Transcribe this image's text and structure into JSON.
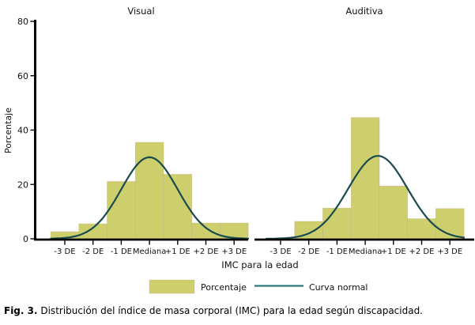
{
  "figure": {
    "caption": {
      "prefix": "Fig. 3.",
      "text": " Distribución del índice de masa corporal (IMC) para la edad según discapacidad."
    }
  },
  "chart_data": {
    "type": "bar",
    "subtype": "histogram-with-normal-curve",
    "title": "",
    "xlabel": "IMC para la edad",
    "ylabel": "Porcentaje",
    "ylim": [
      0,
      80
    ],
    "yticks": [
      0,
      20,
      40,
      60,
      80
    ],
    "grid": false,
    "legend_position": "bottom",
    "categories": [
      "-3 DE",
      "-2 DE",
      "-1 DE",
      "Mediana",
      "+1 DE",
      "+2 DE",
      "+3 DE"
    ],
    "legend": [
      {
        "label": "Porcentaje",
        "marker": "bar-swatch"
      },
      {
        "label": "Curva normal",
        "marker": "line"
      }
    ],
    "panels": [
      {
        "title": "Visual",
        "values": [
          2.6,
          5.5,
          21.1,
          35.5,
          23.7,
          5.8,
          5.8
        ],
        "normal_curve": {
          "mean_de": 0.0,
          "sd_de": 1.0,
          "peak": 30.0
        }
      },
      {
        "title": "Auditiva",
        "values": [
          0,
          6.4,
          11.3,
          44.6,
          19.4,
          7.4,
          11.1
        ],
        "normal_curve": {
          "mean_de": 0.45,
          "sd_de": 1.05,
          "peak": 30.5
        }
      }
    ],
    "colors": {
      "bar_fill": "#cdcf6c",
      "bar_edge": "#c7ae85",
      "curve": "#1b4a50",
      "legend_line": "#2e7878",
      "axis": "#000000",
      "text": "#111111"
    }
  }
}
